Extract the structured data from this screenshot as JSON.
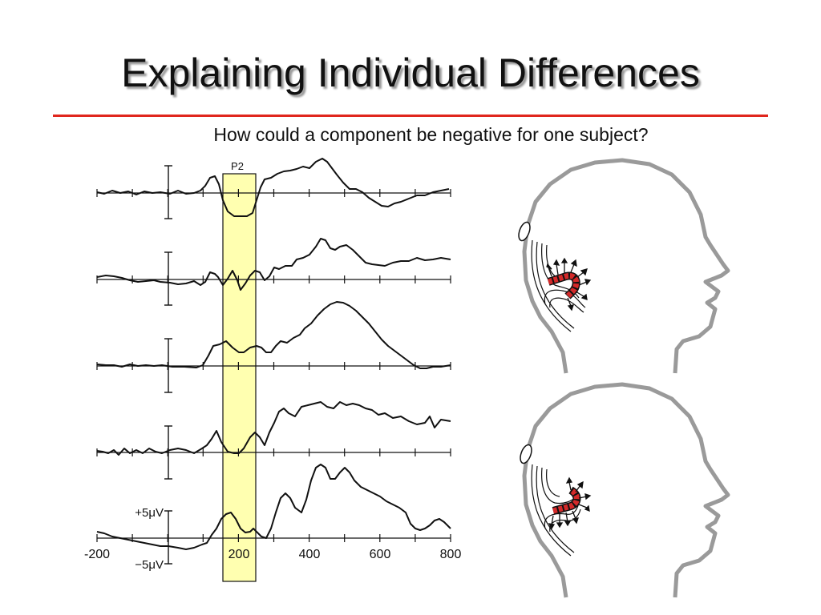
{
  "slide": {
    "title": "Explaining Individual Differences",
    "subtitle": "How could a component be negative for one subject?"
  },
  "erp": {
    "component_label": "P2",
    "x_ticks": [
      "-200",
      "200",
      "400",
      "600",
      "800"
    ],
    "scale_plus": "+5μV",
    "scale_minus": "−5μV"
  },
  "colors": {
    "rule": "#e0261d",
    "highlight": "#ffffb0",
    "head_outline": "#9a9a9a",
    "dipole": "#d42a2a"
  }
}
